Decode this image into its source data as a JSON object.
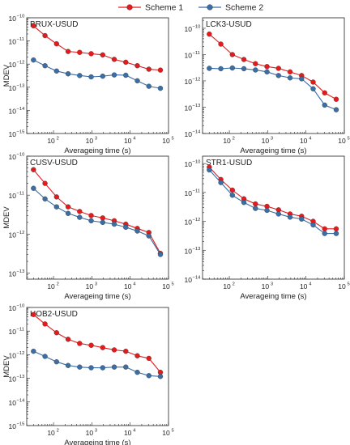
{
  "legend": [
    {
      "label": "Scheme 1",
      "color": "#e41a1c"
    },
    {
      "label": "Scheme 2",
      "color": "#3a6ea5"
    }
  ],
  "chart_data": [
    {
      "type": "line",
      "title": "BRUX-USUD",
      "xlabel": "Averageing time (s)",
      "ylabel": "MDEV",
      "xscale": "log",
      "yscale": "log",
      "xlim": [
        20,
        100000
      ],
      "ylim": [
        1e-15,
        1e-10
      ],
      "x": [
        30,
        60,
        120,
        240,
        480,
        960,
        1920,
        3840,
        7680,
        15360,
        30720,
        61440
      ],
      "series": [
        {
          "name": "Scheme 1",
          "values": [
            4.5e-11,
            1.7e-11,
            7.5e-12,
            3.5e-12,
            3.2e-12,
            2.8e-12,
            2.5e-12,
            1.6e-12,
            1.2e-12,
            8.5e-13,
            6e-13,
            5.5e-13
          ]
        },
        {
          "name": "Scheme 2",
          "values": [
            1.5e-12,
            8.5e-13,
            5e-13,
            3.8e-13,
            3.2e-13,
            2.8e-13,
            3e-13,
            3.4e-13,
            3.3e-13,
            1.9e-13,
            1.1e-13,
            9e-14
          ]
        }
      ]
    },
    {
      "type": "line",
      "title": "LCK3-USUD",
      "xlabel": "Averageing time (s)",
      "ylabel": "",
      "xscale": "log",
      "yscale": "log",
      "xlim": [
        20,
        100000
      ],
      "ylim": [
        1e-14,
        2.5e-10
      ],
      "x": [
        30,
        60,
        120,
        240,
        480,
        960,
        1920,
        3840,
        7680,
        15360,
        30720,
        61440
      ],
      "series": [
        {
          "name": "Scheme 1",
          "values": [
            6e-11,
            2.5e-11,
            1e-11,
            6.5e-12,
            4.5e-12,
            3.5e-12,
            3e-12,
            2.2e-12,
            1.6e-12,
            9e-13,
            3.5e-13,
            2e-13
          ]
        },
        {
          "name": "Scheme 2",
          "values": [
            3e-12,
            2.9e-12,
            3.1e-12,
            2.9e-12,
            2.6e-12,
            2.2e-12,
            1.6e-12,
            1.3e-12,
            1.2e-12,
            5e-13,
            1.2e-13,
            8e-14
          ]
        }
      ]
    },
    {
      "type": "line",
      "title": "CUSV-USUD",
      "xlabel": "Averageing time (s)",
      "ylabel": "MDEV",
      "xscale": "log",
      "yscale": "log",
      "xlim": [
        20,
        100000
      ],
      "ylim": [
        7e-14,
        1e-10
      ],
      "x": [
        30,
        60,
        120,
        240,
        480,
        960,
        1920,
        3840,
        7680,
        15360,
        30720,
        61440
      ],
      "series": [
        {
          "name": "Scheme 1",
          "values": [
            4.5e-11,
            2e-11,
            9e-12,
            5e-12,
            3.8e-12,
            3e-12,
            2.6e-12,
            2.2e-12,
            1.8e-12,
            1.4e-12,
            1.1e-12,
            3.2e-13
          ]
        },
        {
          "name": "Scheme 2",
          "values": [
            1.5e-11,
            8e-12,
            5e-12,
            3.4e-12,
            2.7e-12,
            2.2e-12,
            2e-12,
            1.8e-12,
            1.5e-12,
            1.2e-12,
            9e-13,
            3e-13
          ]
        }
      ]
    },
    {
      "type": "line",
      "title": "STR1-USUD",
      "xlabel": "Averageing time (s)",
      "ylabel": "",
      "xscale": "log",
      "yscale": "log",
      "xlim": [
        20,
        100000
      ],
      "ylim": [
        1e-14,
        1.8e-10
      ],
      "x": [
        30,
        60,
        120,
        240,
        480,
        960,
        1920,
        3840,
        7680,
        15360,
        30720,
        61440
      ],
      "series": [
        {
          "name": "Scheme 1",
          "values": [
            7.5e-11,
            2.8e-11,
            1.2e-11,
            6e-12,
            4e-12,
            3.3e-12,
            2.5e-12,
            1.8e-12,
            1.5e-12,
            1e-12,
            5.5e-13,
            5.5e-13
          ]
        },
        {
          "name": "Scheme 2",
          "values": [
            6e-11,
            2.2e-11,
            8e-12,
            4.5e-12,
            2.8e-12,
            2.4e-12,
            1.8e-12,
            1.4e-12,
            1.2e-12,
            7.5e-13,
            3.8e-13,
            3.8e-13
          ]
        }
      ]
    },
    {
      "type": "line",
      "title": "HOB2-USUD",
      "xlabel": "Averageing time (s)",
      "ylabel": "MDEV",
      "xscale": "log",
      "yscale": "log",
      "xlim": [
        20,
        100000
      ],
      "ylim": [
        1e-15,
        1e-10
      ],
      "x": [
        30,
        60,
        120,
        240,
        480,
        960,
        1920,
        3840,
        7680,
        15360,
        30720,
        61440
      ],
      "series": [
        {
          "name": "Scheme 1",
          "values": [
            5e-11,
            2e-11,
            8.5e-12,
            4.5e-12,
            3e-12,
            2.5e-12,
            2e-12,
            1.6e-12,
            1.4e-12,
            9e-13,
            7e-13,
            1.8e-13
          ]
        },
        {
          "name": "Scheme 2",
          "values": [
            1.4e-12,
            8.5e-13,
            5e-13,
            3.5e-13,
            3e-13,
            2.8e-13,
            2.8e-13,
            3e-13,
            3e-13,
            1.8e-13,
            1.3e-13,
            1.2e-13
          ]
        }
      ]
    }
  ]
}
